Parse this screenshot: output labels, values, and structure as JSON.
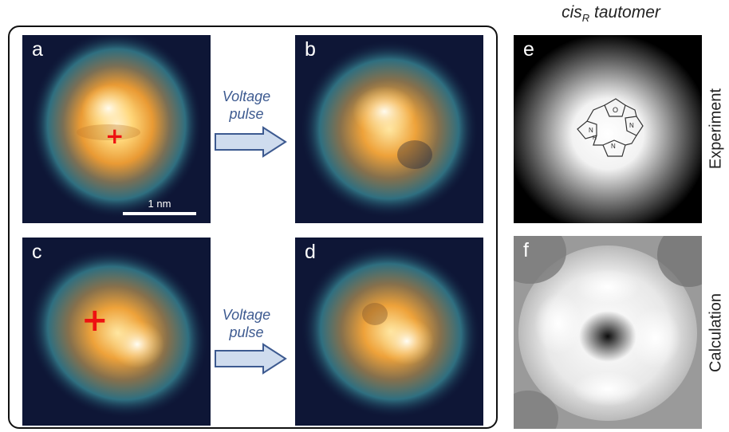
{
  "title": {
    "main": "cis",
    "sub": "R",
    "rest": " tautomer"
  },
  "panels": {
    "a": {
      "letter": "a",
      "scale_label": "1 nm"
    },
    "b": {
      "letter": "b"
    },
    "c": {
      "letter": "c"
    },
    "d": {
      "letter": "d"
    },
    "e": {
      "letter": "e"
    },
    "f": {
      "letter": "f"
    }
  },
  "arrows": [
    {
      "line1": "Voltage",
      "line2": "pulse"
    },
    {
      "line1": "Voltage",
      "line2": "pulse"
    }
  ],
  "markers": {
    "cross_symbol": "+"
  },
  "molecule": {
    "atom_N": "N",
    "atom_NH": "N",
    "atom_H": "H",
    "atom_O": "O"
  },
  "row_labels": {
    "experiment": "Experiment",
    "calculation": "Calculation"
  },
  "colors": {
    "stm_background": "#0e1636",
    "stm_glow": "#2f7f8c",
    "stm_core": "#f2a43a",
    "stm_peak": "#fff6dc",
    "arrow_fill": "#cfdcee",
    "arrow_stroke": "#3d5a90",
    "cross": "#ee1111"
  }
}
